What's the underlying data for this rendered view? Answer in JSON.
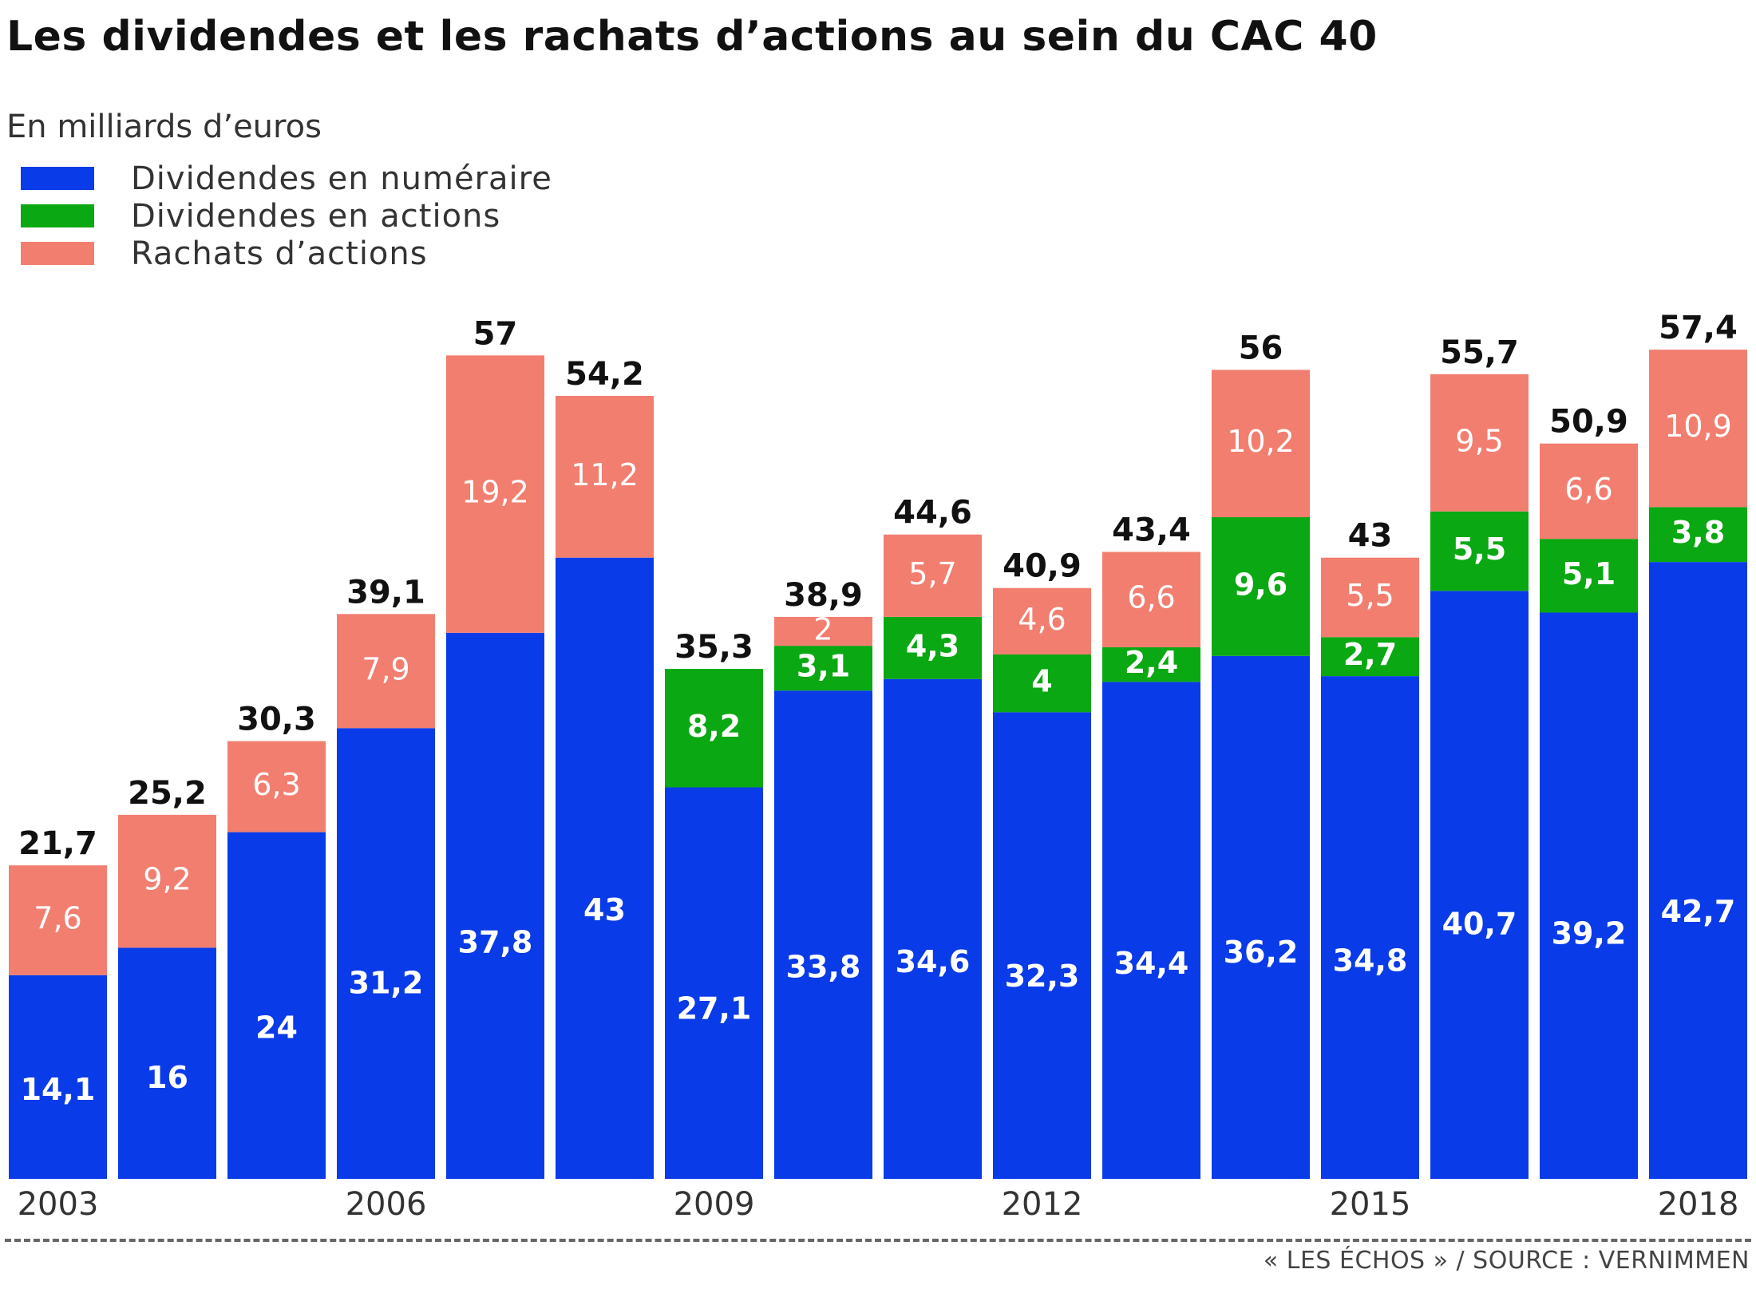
{
  "chart_data": {
    "type": "bar",
    "stacked": true,
    "title": "Les dividendes et les rachats d’actions au sein du CAC 40",
    "subtitle": "En milliards d’euros",
    "xlabel": "",
    "ylabel": "",
    "ylim": [
      0,
      60
    ],
    "grid": false,
    "legend_position": "top-left",
    "categories": [
      "2003",
      "2004",
      "2005",
      "2006",
      "2007",
      "2008",
      "2009",
      "2010",
      "2011",
      "2012",
      "2013",
      "2014",
      "2015",
      "2016",
      "2017",
      "2018"
    ],
    "tick_labels": [
      "2003",
      "",
      "",
      "2006",
      "",
      "",
      "2009",
      "",
      "",
      "2012",
      "",
      "",
      "2015",
      "",
      "",
      "2018"
    ],
    "series": [
      {
        "name": "Dividendes en numéraire",
        "color": "#0a3be8",
        "values": [
          14.1,
          16,
          24,
          31.2,
          37.8,
          43,
          27.1,
          33.8,
          34.6,
          32.3,
          34.4,
          36.2,
          34.8,
          40.7,
          39.2,
          42.7
        ],
        "labels": [
          "14,1",
          "16",
          "24",
          "31,2",
          "37,8",
          "43",
          "27,1",
          "33,8",
          "34,6",
          "32,3",
          "34,4",
          "36,2",
          "34,8",
          "40,7",
          "39,2",
          "42,7"
        ]
      },
      {
        "name": "Dividendes en actions",
        "color": "#0aa812",
        "values": [
          0,
          0,
          0,
          0,
          0,
          0,
          8.2,
          3.1,
          4.3,
          4,
          2.4,
          9.6,
          2.7,
          5.5,
          5.1,
          3.8
        ],
        "labels": [
          "",
          "",
          "",
          "",
          "",
          "",
          "8,2",
          "3,1",
          "4,3",
          "4",
          "2,4",
          "9,6",
          "2,7",
          "5,5",
          "5,1",
          "3,8"
        ]
      },
      {
        "name": "Rachats d’actions",
        "color": "#f27e70",
        "values": [
          7.6,
          9.2,
          6.3,
          7.9,
          19.2,
          11.2,
          0,
          2,
          5.7,
          4.6,
          6.6,
          10.2,
          5.5,
          9.5,
          6.6,
          10.9
        ],
        "labels": [
          "7,6",
          "9,2",
          "6,3",
          "7,9",
          "19,2",
          "11,2",
          "",
          "2",
          "5,7",
          "4,6",
          "6,6",
          "10,2",
          "5,5",
          "9,5",
          "6,6",
          "10,9"
        ]
      }
    ],
    "totals": [
      21.7,
      25.2,
      30.3,
      39.1,
      57,
      54.2,
      35.3,
      38.9,
      44.6,
      40.9,
      43.4,
      56,
      43,
      55.7,
      50.9,
      57.4
    ],
    "total_labels": [
      "21,7",
      "25,2",
      "30,3",
      "39,1",
      "57",
      "54,2",
      "35,3",
      "38,9",
      "44,6",
      "40,9",
      "43,4",
      "56",
      "43",
      "55,7",
      "50,9",
      "57,4"
    ]
  },
  "header": {
    "title": "Les dividendes et les rachats d’actions au sein du CAC 40",
    "subtitle": "En milliards d’euros"
  },
  "legend": [
    {
      "label": "Dividendes en numéraire",
      "color": "#0a3be8"
    },
    {
      "label": "Dividendes en actions",
      "color": "#0aa812"
    },
    {
      "label": "Rachats d’actions",
      "color": "#f27e70"
    }
  ],
  "footer": {
    "source": "« LES ÉCHOS » / SOURCE : VERNIMMEN"
  }
}
